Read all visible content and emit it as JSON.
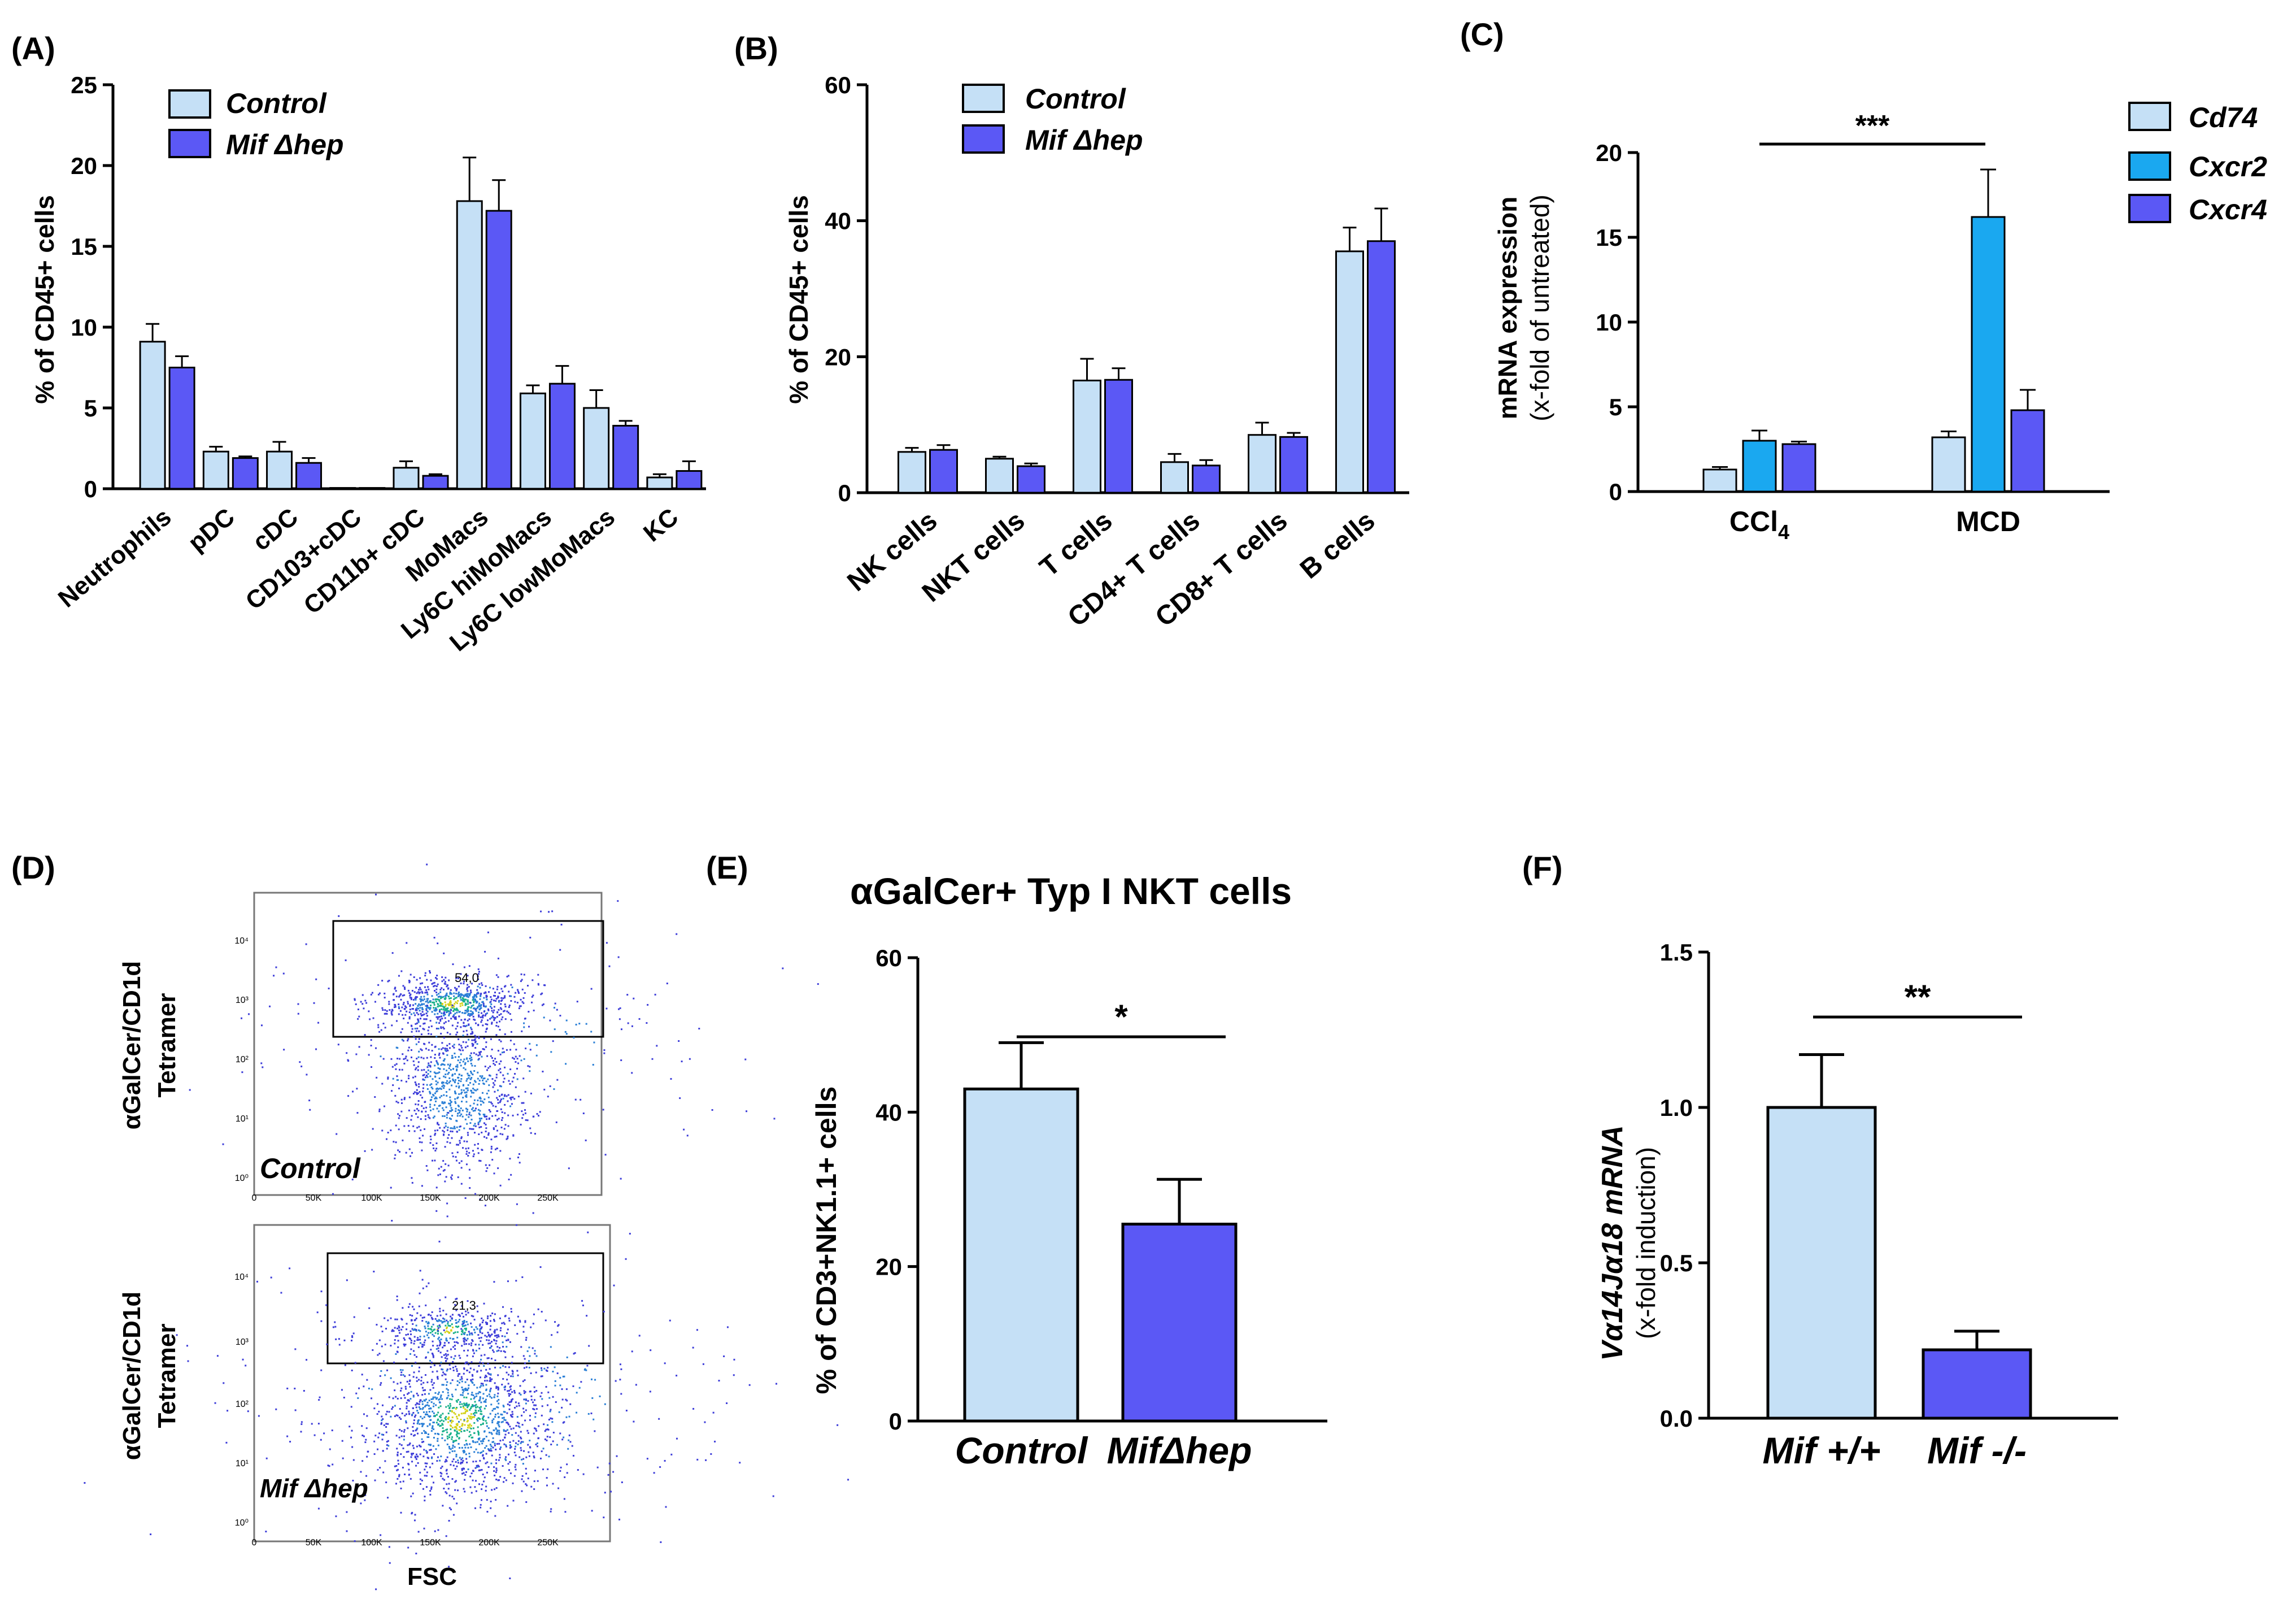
{
  "colors": {
    "control": "#c5e0f6",
    "mif": "#5b58f5",
    "cxcr2": "#1aa8f0",
    "axis": "#000000"
  },
  "panel_labels": [
    "(A)",
    "(B)",
    "(C)",
    "(D)",
    "(E)",
    "(F)"
  ],
  "chart_data": [
    {
      "id": "A",
      "type": "bar",
      "ylabel": "% of CD45+ cells",
      "ylim": [
        0,
        25
      ],
      "yticks": [
        "0",
        "5",
        "10",
        "15",
        "20",
        "25"
      ],
      "categories": [
        "Neutrophils",
        "pDC",
        "cDC",
        "CD103+cDC",
        "CD11b+ cDC",
        "MoMacs",
        "Ly6C hiMoMacs",
        "Ly6C lowMoMacs",
        "KC"
      ],
      "legend": [
        "Control",
        "Mif Δhep"
      ],
      "series": [
        {
          "name": "Control",
          "values": [
            9.1,
            2.3,
            2.3,
            0.05,
            1.3,
            17.8,
            5.9,
            5.0,
            0.7
          ],
          "errors": [
            1.1,
            0.3,
            0.6,
            0.0,
            0.4,
            2.7,
            0.5,
            1.1,
            0.2
          ]
        },
        {
          "name": "Mif Δhep",
          "values": [
            7.5,
            1.9,
            1.6,
            0.05,
            0.8,
            17.2,
            6.5,
            3.9,
            1.1
          ],
          "errors": [
            0.7,
            0.1,
            0.3,
            0.0,
            0.1,
            1.9,
            1.1,
            0.3,
            0.6
          ]
        }
      ]
    },
    {
      "id": "B",
      "type": "bar",
      "ylabel": "% of CD45+ cells",
      "ylim": [
        0,
        60
      ],
      "yticks": [
        "0",
        "20",
        "40",
        "60"
      ],
      "categories": [
        "NK cells",
        "NKT cells",
        "T cells",
        "CD4+ T cells",
        "CD8+ T cells",
        "B cells"
      ],
      "legend": [
        "Control",
        "Mif Δhep"
      ],
      "series": [
        {
          "name": "Control",
          "values": [
            6.0,
            5.0,
            16.5,
            4.5,
            8.5,
            35.5
          ],
          "errors": [
            0.6,
            0.3,
            3.2,
            1.2,
            1.8,
            3.5
          ]
        },
        {
          "name": "Mif Δhep",
          "values": [
            6.3,
            3.9,
            16.6,
            4.0,
            8.2,
            37.0
          ],
          "errors": [
            0.7,
            0.4,
            1.7,
            0.8,
            0.6,
            4.8
          ]
        }
      ]
    },
    {
      "id": "C",
      "type": "bar",
      "ylabel": "mRNA expression",
      "ylabel2": "(x-fold of untreated)",
      "ylim": [
        0,
        20
      ],
      "yticks": [
        "0",
        "5",
        "10",
        "15",
        "20"
      ],
      "categories": [
        "CCl4",
        "MCD"
      ],
      "legend": [
        "Cd74",
        "Cxcr2",
        "Cxcr4"
      ],
      "significance": "***",
      "series": [
        {
          "name": "Cd74",
          "values": [
            1.3,
            3.2
          ],
          "errors": [
            0.15,
            0.35
          ]
        },
        {
          "name": "Cxcr2",
          "values": [
            3.0,
            16.2
          ],
          "errors": [
            0.6,
            2.8
          ]
        },
        {
          "name": "Cxcr4",
          "values": [
            2.8,
            4.8
          ],
          "errors": [
            0.15,
            1.2
          ]
        }
      ]
    },
    {
      "id": "E",
      "type": "bar",
      "title": "αGalCer+ Typ I NKT cells",
      "ylabel": "% of CD3+NK1.1+ cells",
      "ylim": [
        0,
        60
      ],
      "yticks": [
        "0",
        "20",
        "40",
        "60"
      ],
      "categories": [
        "Control",
        "MifΔhep"
      ],
      "significance": "*",
      "values": [
        43.0,
        25.5
      ],
      "errors": [
        6.0,
        5.8
      ]
    },
    {
      "id": "F",
      "type": "bar",
      "ylabel": "Vα14Jα18 mRNA",
      "ylabel2": "(x-fold induction)",
      "ylim": [
        0,
        1.5
      ],
      "yticks": [
        "0.0",
        "0.5",
        "1.0",
        "1.5"
      ],
      "categories": [
        "Mif +/+",
        "Mif -/-"
      ],
      "significance": "**",
      "values": [
        1.0,
        0.22
      ],
      "errors": [
        0.17,
        0.06
      ]
    }
  ],
  "flow": {
    "ylabel_line1": "αGalCer/CD1d",
    "ylabel_line2": "Tetramer",
    "xlabel": "FSC",
    "xticks": [
      "0",
      "50K",
      "100K",
      "150K",
      "200K",
      "250K"
    ],
    "yticks": [
      "10⁰",
      "10¹",
      "10²",
      "10³",
      "10⁴"
    ],
    "plots": [
      {
        "label": "Control",
        "gate_value": "54,0"
      },
      {
        "label": "Mif Δhep",
        "gate_value": "21,3"
      }
    ]
  }
}
